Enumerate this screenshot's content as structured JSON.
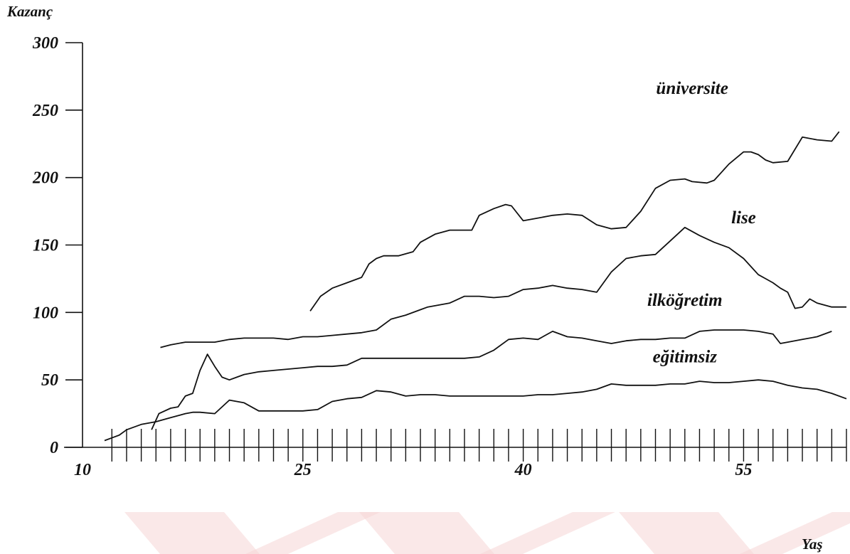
{
  "chart_data": {
    "type": "line",
    "ylabel": "Kazanç",
    "xlabel": "Yaş",
    "xlim": [
      10,
      62
    ],
    "ylim": [
      0,
      300
    ],
    "x_ticks": [
      10,
      25,
      40,
      55
    ],
    "y_ticks": [
      0,
      50,
      100,
      150,
      200,
      250,
      300
    ],
    "minor_x_tick_step": 1,
    "grid": false,
    "watermark_color": "#f6d5d5",
    "series": [
      {
        "name": "üniversite",
        "x": [
          25.5,
          26.2,
          27.0,
          28.0,
          29.0,
          29.5,
          30.0,
          30.5,
          31.5,
          32.5,
          33.0,
          34.0,
          35.0,
          36.5,
          37.0,
          38.0,
          38.8,
          39.2,
          40.0,
          41.0,
          42.0,
          43.0,
          44.0,
          45.0,
          46.0,
          47.0,
          48.0,
          49.0,
          50.0,
          51.0,
          51.5,
          52.5,
          53.0,
          54.0,
          55.0,
          55.5,
          56.0,
          56.5,
          57.0,
          58.0,
          59.0,
          60.0,
          61.0,
          61.5
        ],
        "values": [
          101,
          112,
          118,
          122,
          126,
          136,
          140,
          142,
          142,
          145,
          152,
          158,
          161,
          161,
          172,
          177,
          180,
          179,
          168,
          170,
          172,
          173,
          172,
          165,
          162,
          163,
          175,
          192,
          198,
          199,
          197,
          196,
          198,
          210,
          219,
          219,
          217,
          213,
          211,
          212,
          230,
          228,
          227,
          234
        ]
      },
      {
        "name": "lise",
        "x": [
          15.3,
          16.0,
          17.0,
          18.0,
          19.0,
          20.0,
          21.0,
          22.0,
          23.0,
          24.0,
          25.0,
          26.0,
          27.0,
          28.0,
          29.0,
          29.5,
          30.0,
          31.0,
          32.0,
          33.0,
          33.5,
          34.0,
          35.0,
          36.0,
          37.0,
          38.0,
          39.0,
          40.0,
          41.0,
          42.0,
          43.0,
          44.0,
          45.0,
          46.0,
          47.0,
          48.0,
          49.0,
          50.0,
          51.0,
          52.0,
          53.0,
          54.0,
          55.0,
          56.0,
          56.5,
          57.0,
          57.5,
          58.0,
          58.5,
          59.0,
          59.5,
          60.0,
          61.0,
          62.0
        ],
        "values": [
          74,
          76,
          78,
          78,
          78,
          80,
          81,
          81,
          81,
          80,
          82,
          82,
          83,
          84,
          85,
          86,
          87,
          95,
          98,
          102,
          104,
          105,
          107,
          112,
          112,
          111,
          112,
          117,
          118,
          120,
          118,
          117,
          115,
          130,
          140,
          142,
          143,
          153,
          163,
          157,
          152,
          148,
          140,
          128,
          125,
          122,
          118,
          115,
          103,
          104,
          110,
          107,
          104,
          104
        ]
      },
      {
        "name": "ilköğretim",
        "x": [
          11.5,
          12.0,
          12.5,
          13.0,
          14.0,
          15.0,
          16.0,
          17.0,
          17.5,
          18.0,
          19.0,
          20.0,
          21.0,
          22.0,
          23.0,
          24.0,
          25.0,
          26.0,
          27.0,
          28.0,
          29.0,
          30.0,
          31.0,
          32.0,
          33.0,
          34.0,
          35.0,
          36.0,
          37.0,
          38.0,
          39.0,
          40.0,
          41.0,
          42.0,
          43.0,
          44.0,
          45.0,
          46.0,
          47.0,
          48.0,
          49.0,
          50.0,
          51.0,
          52.0,
          53.0,
          54.0,
          55.0,
          56.0,
          57.0,
          58.0,
          59.0,
          60.0,
          61.0,
          62.0
        ],
        "values": [
          5,
          7,
          9,
          13,
          17,
          19,
          22,
          25,
          26,
          26,
          25,
          35,
          33,
          27,
          27,
          27,
          27,
          28,
          34,
          36,
          37,
          42,
          41,
          38,
          39,
          39,
          38,
          38,
          38,
          38,
          38,
          38,
          39,
          39,
          40,
          41,
          43,
          47,
          46,
          46,
          46,
          47,
          47,
          49,
          48,
          48,
          49,
          50,
          49,
          46,
          44,
          43,
          40,
          36
        ]
      },
      {
        "name": "eğitimsiz",
        "x": [
          14.7,
          15.2,
          16.0,
          16.5,
          17.0,
          17.5,
          18.0,
          18.5,
          19.0,
          19.5,
          20.0,
          20.5,
          21.0,
          22.0,
          23.0,
          24.0,
          25.0,
          26.0,
          27.0,
          28.0,
          29.0,
          30.0,
          31.0,
          32.0,
          33.0,
          34.0,
          35.0,
          36.0,
          37.0,
          38.0,
          39.0,
          40.0,
          41.0,
          42.0,
          43.0,
          44.0,
          45.0,
          46.0,
          47.0,
          48.0,
          49.0,
          50.0,
          51.0,
          52.0,
          53.0,
          54.0,
          55.0,
          56.0,
          57.0,
          57.5,
          58.0,
          59.0,
          60.0,
          61.0
        ],
        "values": [
          13,
          25,
          29,
          30,
          38,
          40,
          57,
          69,
          60,
          52,
          50,
          52,
          54,
          56,
          57,
          58,
          59,
          60,
          60,
          61,
          66,
          66,
          66,
          66,
          66,
          66,
          66,
          66,
          67,
          72,
          80,
          81,
          80,
          86,
          82,
          81,
          79,
          77,
          79,
          80,
          80,
          81,
          81,
          86,
          87,
          87,
          87,
          86,
          84,
          77,
          78,
          80,
          82,
          86
        ]
      }
    ]
  }
}
